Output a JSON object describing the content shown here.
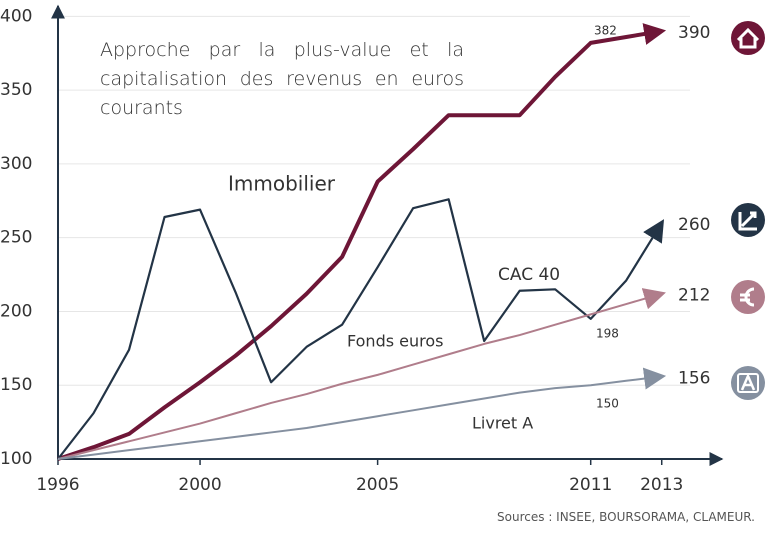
{
  "chart_data": {
    "type": "line",
    "description": "Approche par la plus-value et la capitalisation des revenus en euros courants",
    "source": "Sources : INSEE, BOURSORAMA, CLAMEUR.",
    "x": [
      1996,
      1997,
      1998,
      1999,
      2000,
      2001,
      2002,
      2003,
      2004,
      2005,
      2006,
      2007,
      2008,
      2009,
      2010,
      2011,
      2012,
      2013
    ],
    "series": [
      {
        "name": "Immobilier",
        "color": "#6e1637",
        "values": [
          100,
          108,
          117,
          135,
          152,
          170,
          190,
          212,
          237,
          288,
          310,
          333,
          333,
          333,
          359,
          382,
          386,
          390
        ]
      },
      {
        "name": "CAC 40",
        "color": "#233446",
        "values": [
          100,
          131,
          174,
          264,
          269,
          213,
          152,
          176,
          191,
          230,
          270,
          276,
          180,
          214,
          215,
          195,
          221,
          260
        ]
      },
      {
        "name": "Fonds euros",
        "color": "#b07d8b",
        "values": [
          100,
          106,
          112,
          118,
          124,
          131,
          138,
          144,
          151,
          157,
          164,
          171,
          178,
          184,
          191,
          198,
          205,
          212
        ]
      },
      {
        "name": "Livret A",
        "color": "#8590a0",
        "values": [
          100,
          103,
          106,
          109,
          112,
          115,
          118,
          121,
          125,
          129,
          133,
          137,
          141,
          145,
          148,
          150,
          153,
          156
        ]
      }
    ],
    "xlim": [
      1996,
      2014.5
    ],
    "ylim": [
      100,
      407
    ],
    "xticks": [
      1996,
      2000,
      2005,
      2011,
      2013
    ],
    "yticks": [
      100,
      150,
      200,
      250,
      300,
      350,
      400
    ],
    "grid": true
  }
}
